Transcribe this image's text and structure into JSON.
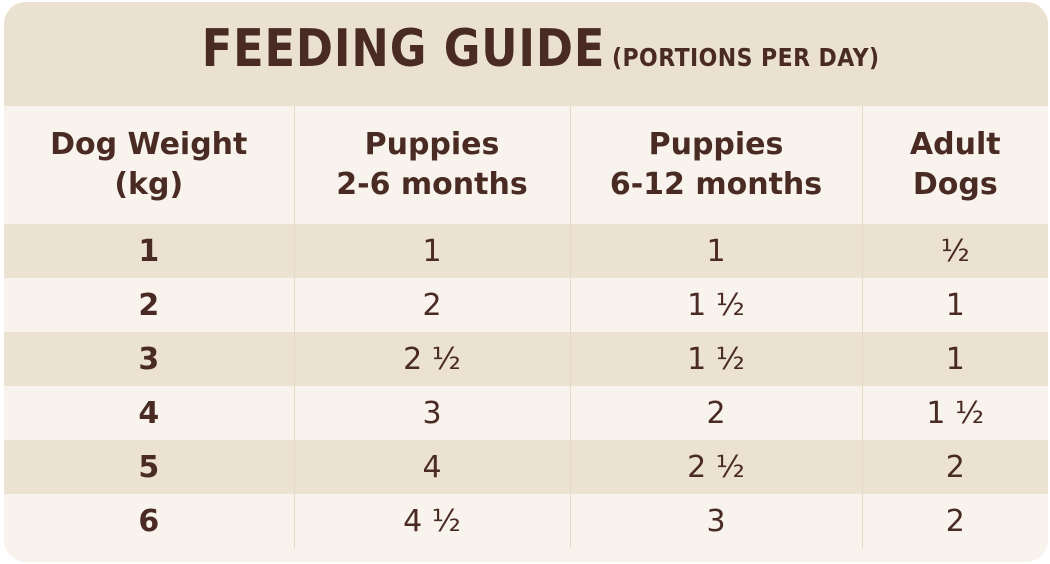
{
  "title": {
    "main": "FEEDING GUIDE",
    "sub": "(PORTIONS PER DAY)"
  },
  "table": {
    "headers": [
      {
        "line1": "Dog Weight",
        "line2": "(kg)"
      },
      {
        "line1": "Puppies",
        "line2": "2-6 months"
      },
      {
        "line1": "Puppies",
        "line2": "6-12 months"
      },
      {
        "line1": "Adult",
        "line2": "Dogs"
      }
    ],
    "rows": [
      [
        "1",
        "1",
        "1",
        "½"
      ],
      [
        "2",
        "2",
        "1 ½",
        "1"
      ],
      [
        "3",
        "2 ½",
        "1 ½",
        "1"
      ],
      [
        "4",
        "3",
        "2",
        "1 ½"
      ],
      [
        "5",
        "4",
        "2 ½",
        "2"
      ],
      [
        "6",
        "4 ½",
        "3",
        "2"
      ]
    ]
  },
  "colors": {
    "text": "#4a2b24",
    "title_band": "#ebe1d0",
    "row_shade": "#ece2d2",
    "background": "#f8f3ec"
  }
}
